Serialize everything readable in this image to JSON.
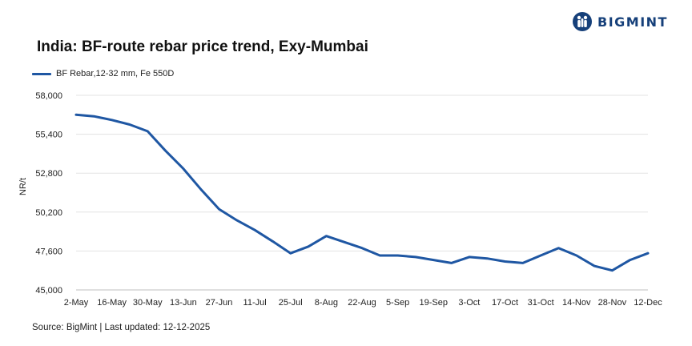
{
  "brand": {
    "name": "BIGMINT",
    "accent": "#16407a"
  },
  "header": {
    "title": "India: BF-route rebar price trend, Exy-Mumbai"
  },
  "footer": {
    "source": "Source: BigMint | Last updated: 12-12-2025"
  },
  "chart_data": {
    "type": "line",
    "title": "India: BF-route rebar price trend, Exy-Mumbai",
    "xlabel": "",
    "ylabel": "NR/t",
    "ylim": [
      45000,
      58000
    ],
    "yticks": [
      45000,
      47600,
      50200,
      52800,
      55400,
      58000
    ],
    "ytick_labels": [
      "45,000",
      "47,600",
      "50,200",
      "52,800",
      "55,400",
      "58,000"
    ],
    "xtick_labels": [
      "2-May",
      "16-May",
      "30-May",
      "13-Jun",
      "27-Jun",
      "11-Jul",
      "25-Jul",
      "8-Aug",
      "22-Aug",
      "5-Sep",
      "19-Sep",
      "3-Oct",
      "17-Oct",
      "31-Oct",
      "14-Nov",
      "28-Nov",
      "12-Dec"
    ],
    "grid": true,
    "legend_position": "top-left",
    "series": [
      {
        "name": "BF Rebar,12-32 mm, Fe 550D",
        "color": "#1f57a3",
        "values": [
          56700,
          56600,
          56350,
          56050,
          55600,
          54300,
          53100,
          51700,
          50400,
          49650,
          49000,
          48250,
          47450,
          47900,
          48600,
          48200,
          47800,
          47300,
          47300,
          47200,
          47000,
          46800,
          47200,
          47100,
          46900,
          46800,
          47300,
          47800,
          47300,
          46600,
          46300,
          47000,
          47450
        ]
      }
    ]
  }
}
